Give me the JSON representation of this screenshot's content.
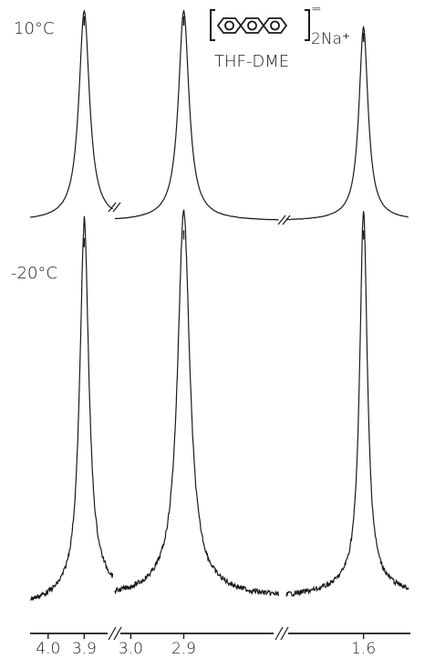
{
  "chart_data": {
    "type": "line",
    "compound": {
      "bracket_charge": "=",
      "counter_ion": "2Na⁺",
      "solvent": "THF-DME"
    },
    "series": [
      {
        "name": "10°C",
        "peaks": [
          {
            "x": 3.9,
            "relative_height": 1.0
          },
          {
            "x": 2.9,
            "relative_height": 1.0
          },
          {
            "x": 1.6,
            "relative_height": 0.92
          }
        ]
      },
      {
        "name": "-20°C",
        "peaks": [
          {
            "x": 3.9,
            "relative_height": 0.95
          },
          {
            "x": 2.9,
            "relative_height": 0.97
          },
          {
            "x": 1.6,
            "relative_height": 0.97
          }
        ]
      }
    ],
    "x_ticks": [
      "4.0",
      "3.9",
      "3.0",
      "2.9",
      "1.6"
    ],
    "axis_breaks": 2,
    "xlabel": "",
    "ylabel": "",
    "title": ""
  },
  "colors": {
    "ink": "#1a1a1a",
    "background": "#ffffff"
  }
}
